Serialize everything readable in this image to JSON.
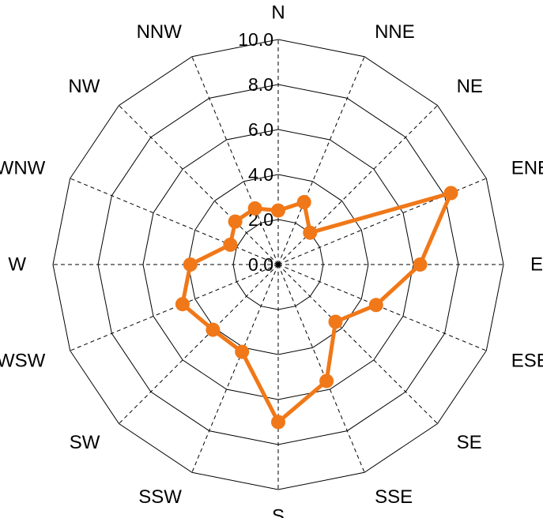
{
  "chart_data": {
    "type": "radar",
    "title": "",
    "directions": [
      "N",
      "NNE",
      "NE",
      "ENE",
      "E",
      "ESE",
      "SE",
      "SSE",
      "S",
      "SSW",
      "SW",
      "WSW",
      "W",
      "WNW",
      "NW",
      "NNW"
    ],
    "values": [
      2.4,
      3.0,
      2.0,
      8.3,
      6.3,
      4.7,
      3.6,
      5.6,
      7.0,
      4.2,
      4.1,
      4.6,
      3.9,
      2.3,
      2.7,
      2.7
    ],
    "rlim": [
      0,
      10
    ],
    "ticks": [
      "0.0",
      "2.0",
      "4.0",
      "6.0",
      "8.0",
      "10.0"
    ],
    "series_color": "#f07818",
    "grid": true
  }
}
